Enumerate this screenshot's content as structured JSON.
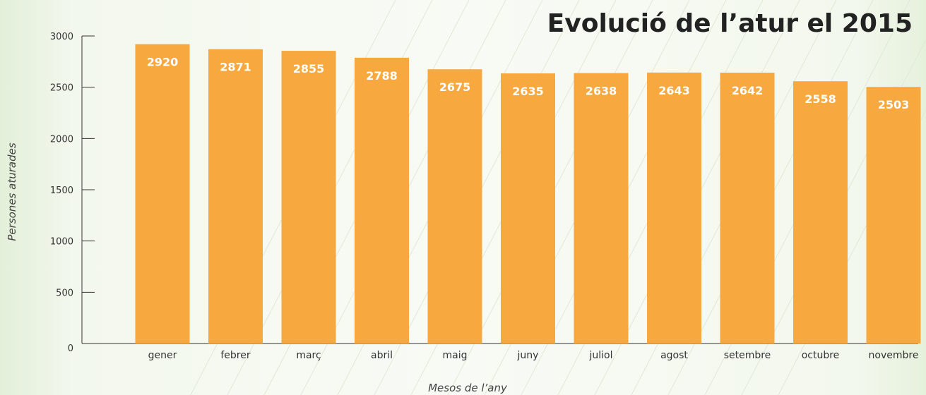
{
  "chart_data": {
    "type": "bar",
    "title": "Evolució de l’atur el 2015",
    "xlabel": "Mesos de l’any",
    "ylabel": "Persones aturades",
    "categories": [
      "gener",
      "febrer",
      "març",
      "abril",
      "maig",
      "juny",
      "juliol",
      "agost",
      "setembre",
      "octubre",
      "novembre"
    ],
    "values": [
      2920,
      2871,
      2855,
      2788,
      2675,
      2635,
      2638,
      2643,
      2642,
      2558,
      2503
    ],
    "ylim": [
      0,
      3000
    ],
    "yticks": [
      0,
      500,
      1000,
      1500,
      2000,
      2500,
      3000
    ],
    "grid": false,
    "legend": "none",
    "bar_color": "#f7a83e",
    "value_label_color": "#ffffff"
  }
}
